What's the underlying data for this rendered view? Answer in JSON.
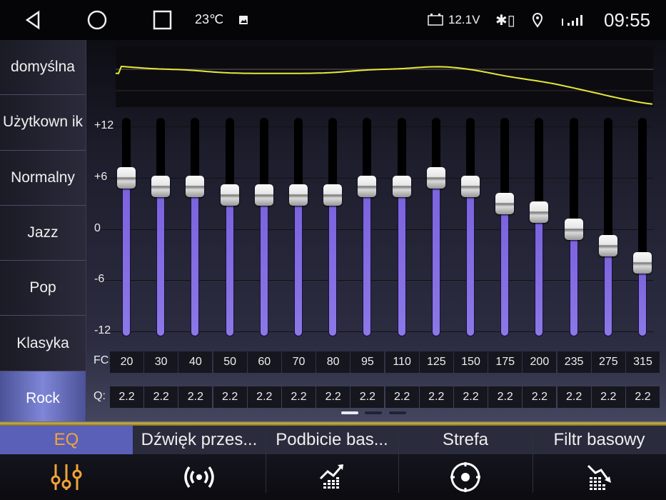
{
  "status_bar": {
    "temperature": "23℃",
    "voltage": "12.1V",
    "time": "09:55"
  },
  "sidebar": {
    "items": [
      {
        "label": "domyślna"
      },
      {
        "label": "Użytkown ik"
      },
      {
        "label": "Normalny"
      },
      {
        "label": "Jazz"
      },
      {
        "label": "Pop"
      },
      {
        "label": "Klasyka"
      },
      {
        "label": "Rock",
        "active": true
      }
    ]
  },
  "eq": {
    "scale_labels": [
      "+12",
      "+6",
      "0",
      "-6",
      "-12"
    ],
    "range_db": [
      -12,
      12
    ],
    "fc_label": "FC:",
    "q_label": "Q:",
    "bands": [
      {
        "fc": "20",
        "q": "2.2",
        "gain": 6
      },
      {
        "fc": "30",
        "q": "2.2",
        "gain": 5
      },
      {
        "fc": "40",
        "q": "2.2",
        "gain": 5
      },
      {
        "fc": "50",
        "q": "2.2",
        "gain": 4
      },
      {
        "fc": "60",
        "q": "2.2",
        "gain": 4
      },
      {
        "fc": "70",
        "q": "2.2",
        "gain": 4
      },
      {
        "fc": "80",
        "q": "2.2",
        "gain": 4
      },
      {
        "fc": "95",
        "q": "2.2",
        "gain": 5
      },
      {
        "fc": "110",
        "q": "2.2",
        "gain": 5
      },
      {
        "fc": "125",
        "q": "2.2",
        "gain": 6
      },
      {
        "fc": "150",
        "q": "2.2",
        "gain": 5
      },
      {
        "fc": "175",
        "q": "2.2",
        "gain": 3
      },
      {
        "fc": "200",
        "q": "2.2",
        "gain": 2
      },
      {
        "fc": "235",
        "q": "2.2",
        "gain": 0
      },
      {
        "fc": "275",
        "q": "2.2",
        "gain": -2
      },
      {
        "fc": "315",
        "q": "2.2",
        "gain": -4
      }
    ],
    "page": 1,
    "pages": 3,
    "curve_color": "#e8e83a",
    "fill_color": "#7a62dc"
  },
  "tabs": [
    {
      "label": "EQ",
      "icon": "equalizer-sliders-icon",
      "active": true
    },
    {
      "label": "Dźwięk przes...",
      "icon": "broadcast-icon"
    },
    {
      "label": "Podbicie bas...",
      "icon": "bass-boost-chart-icon"
    },
    {
      "label": "Strefa",
      "icon": "zone-target-icon"
    },
    {
      "label": "Filtr basowy",
      "icon": "bass-filter-chart-icon"
    }
  ],
  "accent_color": "#f0a43a"
}
